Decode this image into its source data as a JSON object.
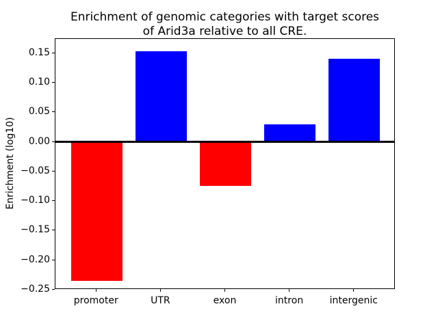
{
  "figure": {
    "title_lines": [
      "Enrichment of genomic categories with target scores",
      "of Arid3a relative to all CRE."
    ],
    "ylabel": "Enrichment (log10)"
  },
  "chart_data": {
    "type": "bar",
    "title": "Enrichment of genomic categories with target scores of Arid3a relative to all CRE.",
    "xlabel": "",
    "ylabel": "Enrichment (log10)",
    "categories": [
      "promoter",
      "UTR",
      "exon",
      "intron",
      "intergenic"
    ],
    "values": [
      -0.235,
      0.153,
      -0.074,
      0.03,
      0.141
    ],
    "bar_colors": [
      "#ff0000",
      "#0000ff",
      "#ff0000",
      "#0000ff",
      "#0000ff"
    ],
    "positive_color": "#0000ff",
    "negative_color": "#ff0000",
    "ylim": [
      -0.25,
      0.174
    ],
    "yticks": [
      0.15,
      0.1,
      0.05,
      0,
      -0.05,
      -0.1,
      -0.15,
      -0.2,
      -0.25
    ],
    "ytick_labels": [
      "0.15",
      "0.10",
      "0.05",
      "0.00",
      "−0.05",
      "−0.10",
      "−0.15",
      "−0.20",
      "−0.25"
    ],
    "bar_width_fraction": 0.8,
    "grid": false,
    "zero_line": true,
    "legend_position": "none"
  }
}
